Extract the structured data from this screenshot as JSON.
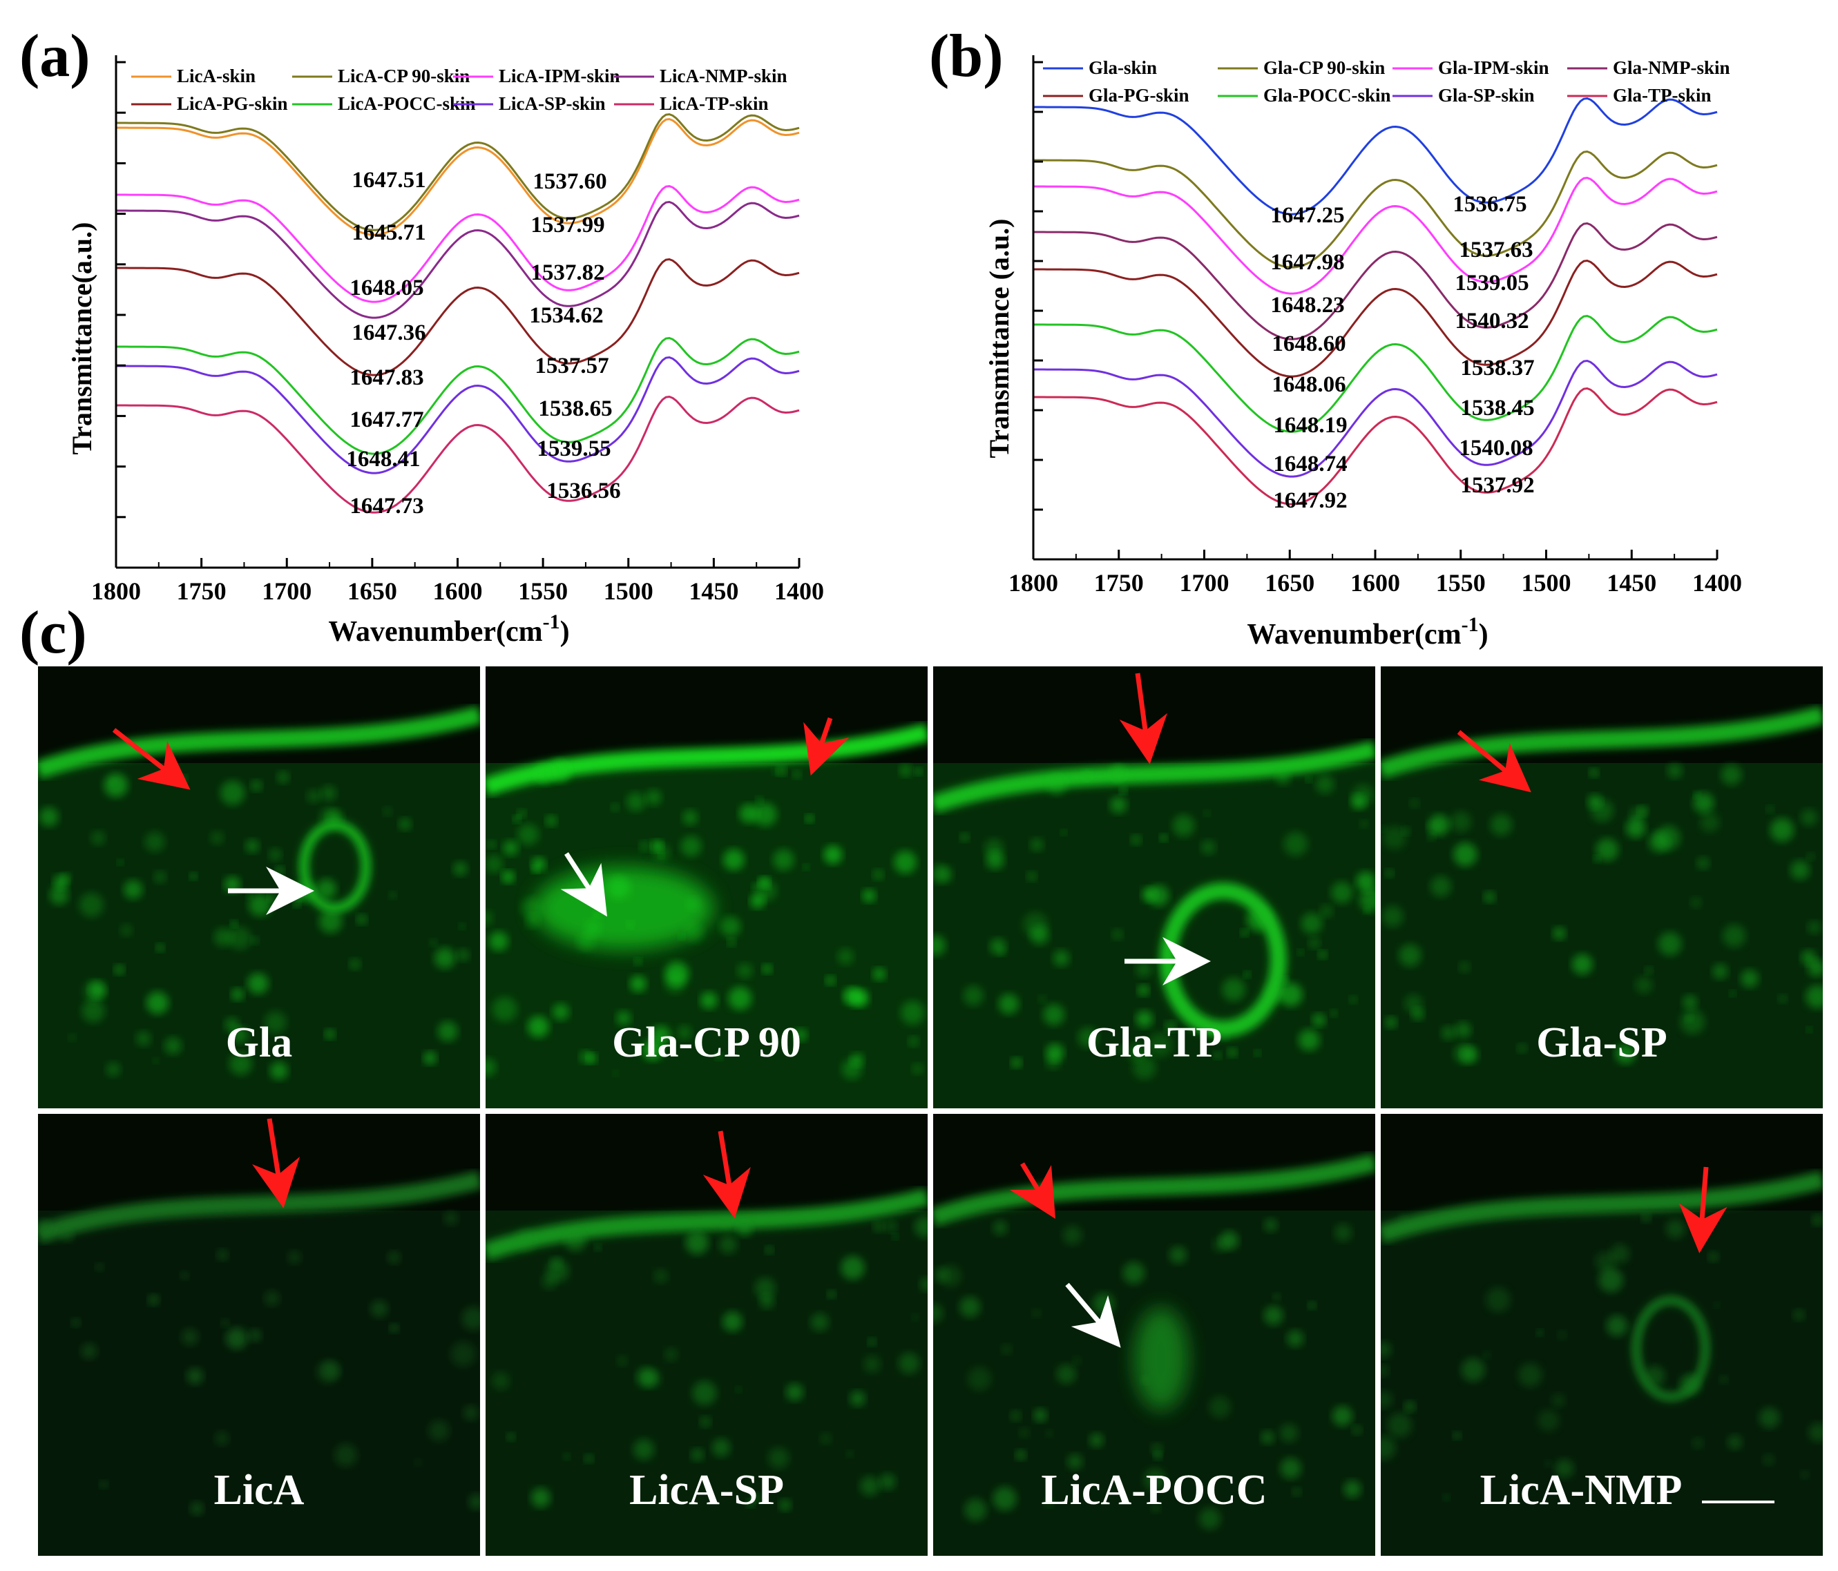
{
  "panel_labels": {
    "a": "(a)",
    "b": "(b)",
    "c": "(c)"
  },
  "chart_data": [
    {
      "type": "line",
      "panel": "(a)",
      "xlabel": "Wavenumber(cm",
      "xlabel_sup": "-1",
      "xlabel_close": ")",
      "ylabel": "Transmittance(a.u.)",
      "xlim": [
        1800,
        1400
      ],
      "x_ticks": [
        "1800",
        "1750",
        "1700",
        "1650",
        "1600",
        "1550",
        "1500",
        "1450",
        "1400"
      ],
      "legend_placement": "top",
      "series": [
        {
          "name": "LicA-skin",
          "color": "#f0922a",
          "peak1": "1647.51",
          "peak2": "1537.60"
        },
        {
          "name": "LicA-CP 90-skin",
          "color": "#7e7a1e",
          "peak1": "1645.71",
          "peak2": "1537.99"
        },
        {
          "name": "LicA-IPM-skin",
          "color": "#ff3dff",
          "peak1": "1648.05",
          "peak2": "1537.82"
        },
        {
          "name": "LicA-NMP-skin",
          "color": "#8a2a8a",
          "peak1": "1647.36",
          "peak2": "1534.62"
        },
        {
          "name": "LicA-PG-skin",
          "color": "#8b2020",
          "peak1": "1647.83",
          "peak2": "1537.57"
        },
        {
          "name": "LicA-POCC-skin",
          "color": "#22c422",
          "peak1": "1647.77",
          "peak2": "1538.65"
        },
        {
          "name": "LicA-SP-skin",
          "color": "#7030e0",
          "peak1": "1648.41",
          "peak2": "1539.55"
        },
        {
          "name": "LicA-TP-skin",
          "color": "#cc2a66",
          "peak1": "1647.73",
          "peak2": "1536.56"
        }
      ]
    },
    {
      "type": "line",
      "panel": "(b)",
      "xlabel": "Wavenumber(cm",
      "xlabel_sup": "-1",
      "xlabel_close": ")",
      "ylabel": "Transmittance (a.u.)",
      "xlim": [
        1800,
        1400
      ],
      "x_ticks": [
        "1800",
        "1750",
        "1700",
        "1650",
        "1600",
        "1550",
        "1500",
        "1450",
        "1400"
      ],
      "legend_placement": "top",
      "series": [
        {
          "name": "Gla-skin",
          "color": "#2040e0",
          "peak1": "1647.25",
          "peak2": "1536.75"
        },
        {
          "name": "Gla-CP 90-skin",
          "color": "#7e7a1e",
          "peak1": "1647.98",
          "peak2": "1537.63"
        },
        {
          "name": "Gla-IPM-skin",
          "color": "#ff3dff",
          "peak1": "1648.23",
          "peak2": "1539.05"
        },
        {
          "name": "Gla-NMP-skin",
          "color": "#8a2a6a",
          "peak1": "1648.60",
          "peak2": "1540.32"
        },
        {
          "name": "Gla-PG-skin",
          "color": "#8b2020",
          "peak1": "1648.06",
          "peak2": "1538.37"
        },
        {
          "name": "Gla-POCC-skin",
          "color": "#22c422",
          "peak1": "1648.19",
          "peak2": "1538.45"
        },
        {
          "name": "Gla-SP-skin",
          "color": "#7030e0",
          "peak1": "1648.74",
          "peak2": "1540.08"
        },
        {
          "name": "Gla-TP-skin",
          "color": "#cc2a55",
          "peak1": "1647.92",
          "peak2": "1537.92"
        }
      ]
    }
  ],
  "micrographs": [
    {
      "label": "Gla",
      "intensity": 0.55
    },
    {
      "label": "Gla-CP 90",
      "intensity": 0.75
    },
    {
      "label": "Gla-TP",
      "intensity": 0.6
    },
    {
      "label": "Gla-SP",
      "intensity": 0.5
    },
    {
      "label": "LicA",
      "intensity": 0.12
    },
    {
      "label": "LicA-SP",
      "intensity": 0.35
    },
    {
      "label": "LicA-POCC",
      "intensity": 0.3
    },
    {
      "label": "LicA-NMP",
      "intensity": 0.2
    }
  ]
}
